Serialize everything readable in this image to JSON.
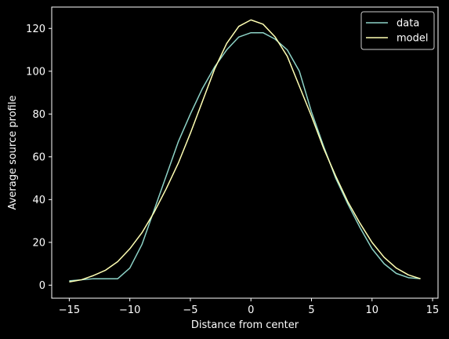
{
  "chart_data": {
    "type": "line",
    "title": "",
    "xlabel": "Distance from center",
    "ylabel": "Average source profile",
    "xlim": [
      -16.45,
      15.45
    ],
    "ylim": [
      -6.1,
      130
    ],
    "xticks": [
      -15,
      -10,
      -5,
      0,
      5,
      10,
      15
    ],
    "yticks": [
      0,
      20,
      40,
      60,
      80,
      100,
      120
    ],
    "grid": false,
    "legend_position": "top-right",
    "background": "#000000",
    "series": [
      {
        "name": "data",
        "color": "#8dd3c7",
        "x": [
          -15,
          -14,
          -13,
          -12,
          -11,
          -10,
          -9,
          -8,
          -7,
          -6,
          -5,
          -4,
          -3,
          -2,
          -1,
          0,
          1,
          2,
          3,
          4,
          5,
          6,
          7,
          8,
          9,
          10,
          11,
          12,
          13,
          14
        ],
        "y": [
          2,
          2.5,
          3,
          3,
          3,
          8,
          19,
          35,
          51,
          67,
          80,
          92,
          102,
          110,
          116,
          118,
          118,
          115,
          110,
          100,
          81,
          65,
          50,
          38,
          27,
          17,
          10,
          5.5,
          3.5,
          3
        ]
      },
      {
        "name": "model",
        "color": "#ffffb3",
        "x": [
          -15,
          -14,
          -13,
          -12,
          -11,
          -10,
          -9,
          -8,
          -7,
          -6,
          -5,
          -4,
          -3,
          -2,
          -1,
          0,
          1,
          2,
          3,
          4,
          5,
          6,
          7,
          8,
          9,
          10,
          11,
          12,
          13,
          14
        ],
        "y": [
          1.5,
          2.5,
          4.5,
          7,
          11,
          17,
          24.5,
          34,
          45,
          57,
          71,
          86,
          101,
          113,
          121,
          124,
          122,
          116,
          107,
          93,
          79,
          64,
          51,
          39,
          29,
          20,
          13,
          8,
          4.8,
          3
        ]
      }
    ]
  }
}
